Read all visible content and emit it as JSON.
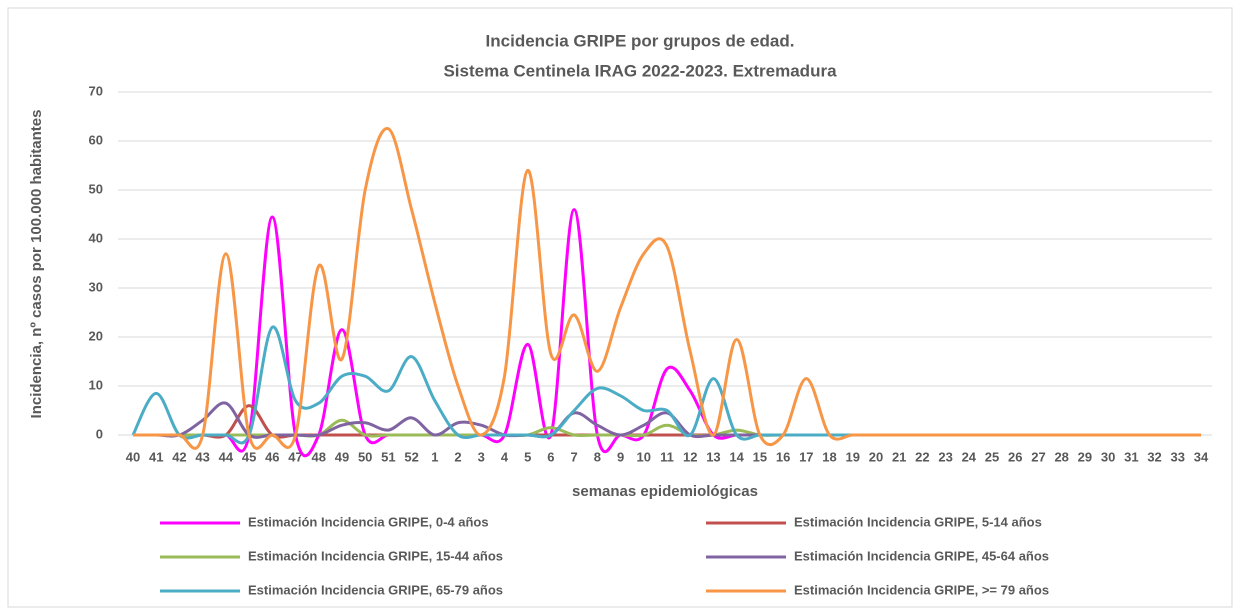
{
  "chart_data": {
    "type": "line",
    "title": "Incidencia GRIPE por grupos de edad.",
    "subtitle": "Sistema Centinela IRAG 2022-2023. Extremadura",
    "x_label": "semanas epidemiológicas",
    "y_label": "Incidencia, nº casos por 100.000 habitantes",
    "categories": [
      "40",
      "41",
      "42",
      "43",
      "44",
      "45",
      "46",
      "47",
      "48",
      "49",
      "50",
      "51",
      "52",
      "1",
      "2",
      "3",
      "4",
      "5",
      "6",
      "7",
      "8",
      "9",
      "10",
      "11",
      "12",
      "13",
      "14",
      "15",
      "16",
      "17",
      "18",
      "19",
      "20",
      "21",
      "22",
      "23",
      "24",
      "25",
      "26",
      "27",
      "28",
      "29",
      "30",
      "31",
      "32",
      "33",
      "34"
    ],
    "ylim": [
      0,
      70
    ],
    "yticks": [
      0,
      10,
      20,
      30,
      40,
      50,
      60,
      70
    ],
    "grid": true,
    "smooth": true,
    "legend": "bottom",
    "series": [
      {
        "name": "Estimación Incidencia GRIPE, 0-4 años",
        "color": "#ff00ff",
        "values": [
          0,
          0,
          0,
          0,
          0,
          0,
          44.5,
          0,
          0,
          21.5,
          0,
          0,
          0,
          0,
          0,
          0,
          0,
          18.5,
          0,
          46,
          0,
          0,
          0,
          13.5,
          9,
          0,
          0,
          0,
          0,
          0,
          0,
          0,
          0,
          0,
          0,
          0,
          0,
          0,
          0,
          0,
          0,
          0,
          0,
          0,
          0,
          0,
          0
        ]
      },
      {
        "name": "Estimación Incidencia GRIPE, 5-14 años",
        "color": "#c0504d",
        "values": [
          0,
          0,
          0,
          0,
          0,
          6,
          0,
          0,
          0,
          0,
          0,
          0,
          0,
          0,
          0,
          0,
          0,
          0,
          0,
          0,
          0,
          0,
          0,
          0,
          0,
          0,
          0,
          0,
          0,
          0,
          0,
          0,
          0,
          0,
          0,
          0,
          0,
          0,
          0,
          0,
          0,
          0,
          0,
          0,
          0,
          0,
          0
        ]
      },
      {
        "name": "Estimación Incidencia GRIPE, 15-44 años",
        "color": "#9bbb59",
        "values": [
          0,
          0,
          0,
          0,
          0,
          0,
          0,
          0,
          0,
          3,
          0,
          0,
          0,
          0,
          0,
          0,
          0,
          0,
          1.5,
          0,
          0,
          0,
          0,
          2,
          0,
          0,
          1,
          0,
          0,
          0,
          0,
          0,
          0,
          0,
          0,
          0,
          0,
          0,
          0,
          0,
          0,
          0,
          0,
          0,
          0,
          0,
          0
        ]
      },
      {
        "name": "Estimación Incidencia GRIPE, 45-64 años",
        "color": "#8064a2",
        "values": [
          0,
          0,
          0,
          3,
          6.5,
          0,
          0,
          0,
          0,
          2,
          2.5,
          1,
          3.5,
          0,
          2.5,
          2,
          0,
          0,
          0,
          4.5,
          2,
          0,
          2,
          4.5,
          0,
          0,
          0,
          0,
          0,
          0,
          0,
          0,
          0,
          0,
          0,
          0,
          0,
          0,
          0,
          0,
          0,
          0,
          0,
          0,
          0,
          0,
          0
        ]
      },
      {
        "name": "Estimación Incidencia GRIPE, 65-79 años",
        "color": "#4bacc6",
        "values": [
          0,
          8.5,
          0,
          0,
          0,
          0,
          22,
          7,
          6.5,
          12,
          12,
          9,
          16,
          7,
          0,
          0,
          0,
          0,
          0,
          5,
          9.5,
          8,
          5,
          5,
          0,
          11.5,
          0,
          0,
          0,
          0,
          0,
          0,
          0,
          0,
          0,
          0,
          0,
          0,
          0,
          0,
          0,
          0,
          0,
          0,
          0,
          0,
          0
        ]
      },
      {
        "name": "Estimación Incidencia GRIPE, >= 79 años",
        "color": "#f79646",
        "values": [
          0,
          0,
          0,
          0,
          37,
          0,
          0,
          0,
          34.5,
          15.5,
          50,
          62.5,
          46,
          27,
          10,
          0,
          12,
          54,
          16.5,
          24.5,
          13,
          26,
          37,
          38.5,
          17,
          0,
          19.5,
          0,
          0,
          11.5,
          0,
          0,
          0,
          0,
          0,
          0,
          0,
          0,
          0,
          0,
          0,
          0,
          0,
          0,
          0,
          0,
          0
        ]
      }
    ]
  }
}
